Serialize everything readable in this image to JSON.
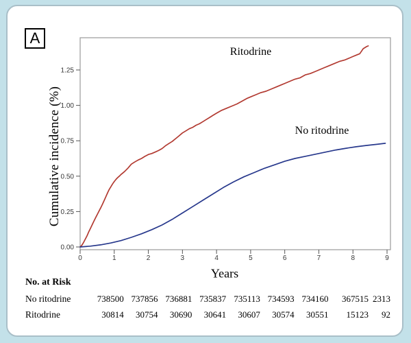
{
  "panel_label": "A",
  "colors": {
    "ritodrine_line": "#b23a31",
    "no_ritodrine_line": "#27388c",
    "frame_background": "#c3e1e9",
    "card_background": "#ffffff",
    "card_border": "#a9bfc8",
    "plot_border": "#9a9a9a",
    "tick_text": "#383838"
  },
  "chart_data": {
    "type": "line",
    "title": "",
    "xlabel": "Years",
    "ylabel": "Cumulative incidence (%)",
    "xlim": [
      0,
      9.1
    ],
    "ylim": [
      0,
      1.48
    ],
    "grid": false,
    "legend_position": "inline-labels",
    "x_ticks": [
      0,
      1,
      2,
      3,
      4,
      5,
      6,
      7,
      8,
      9
    ],
    "x_tick_labels": [
      "0",
      "1",
      "2",
      "3",
      "4",
      "5",
      "6",
      "7",
      "8",
      "9"
    ],
    "y_tick_values": [
      0.0,
      0.25,
      0.5,
      0.75,
      1.0,
      1.25
    ],
    "y_tick_labels": [
      "0.00",
      "0.25",
      "0.50",
      "0.75",
      "1.00",
      "1.25"
    ],
    "series": [
      {
        "name": "Ritodrine",
        "color": "#b23a31",
        "points": [
          [
            0.0,
            0.0
          ],
          [
            0.05,
            0.012
          ],
          [
            0.1,
            0.032
          ],
          [
            0.15,
            0.055
          ],
          [
            0.2,
            0.078
          ],
          [
            0.25,
            0.105
          ],
          [
            0.3,
            0.13
          ],
          [
            0.35,
            0.155
          ],
          [
            0.4,
            0.18
          ],
          [
            0.45,
            0.205
          ],
          [
            0.5,
            0.228
          ],
          [
            0.55,
            0.252
          ],
          [
            0.6,
            0.275
          ],
          [
            0.65,
            0.3
          ],
          [
            0.7,
            0.325
          ],
          [
            0.75,
            0.352
          ],
          [
            0.8,
            0.38
          ],
          [
            0.85,
            0.405
          ],
          [
            0.9,
            0.425
          ],
          [
            0.95,
            0.445
          ],
          [
            1.0,
            0.462
          ],
          [
            1.05,
            0.477
          ],
          [
            1.1,
            0.49
          ],
          [
            1.15,
            0.5
          ],
          [
            1.2,
            0.512
          ],
          [
            1.3,
            0.532
          ],
          [
            1.4,
            0.556
          ],
          [
            1.5,
            0.585
          ],
          [
            1.6,
            0.6
          ],
          [
            1.7,
            0.614
          ],
          [
            1.8,
            0.625
          ],
          [
            1.9,
            0.64
          ],
          [
            2.0,
            0.653
          ],
          [
            2.1,
            0.66
          ],
          [
            2.2,
            0.67
          ],
          [
            2.3,
            0.681
          ],
          [
            2.4,
            0.695
          ],
          [
            2.5,
            0.714
          ],
          [
            2.6,
            0.73
          ],
          [
            2.7,
            0.745
          ],
          [
            2.8,
            0.765
          ],
          [
            2.9,
            0.785
          ],
          [
            3.0,
            0.805
          ],
          [
            3.1,
            0.82
          ],
          [
            3.2,
            0.835
          ],
          [
            3.3,
            0.845
          ],
          [
            3.4,
            0.86
          ],
          [
            3.5,
            0.87
          ],
          [
            3.6,
            0.885
          ],
          [
            3.7,
            0.9
          ],
          [
            3.8,
            0.915
          ],
          [
            3.9,
            0.93
          ],
          [
            4.0,
            0.945
          ],
          [
            4.15,
            0.965
          ],
          [
            4.3,
            0.98
          ],
          [
            4.45,
            0.995
          ],
          [
            4.6,
            1.01
          ],
          [
            4.75,
            1.03
          ],
          [
            4.9,
            1.05
          ],
          [
            5.0,
            1.06
          ],
          [
            5.15,
            1.075
          ],
          [
            5.3,
            1.09
          ],
          [
            5.45,
            1.1
          ],
          [
            5.6,
            1.115
          ],
          [
            5.75,
            1.13
          ],
          [
            5.9,
            1.145
          ],
          [
            6.0,
            1.155
          ],
          [
            6.15,
            1.17
          ],
          [
            6.3,
            1.185
          ],
          [
            6.45,
            1.195
          ],
          [
            6.6,
            1.215
          ],
          [
            6.75,
            1.225
          ],
          [
            6.9,
            1.24
          ],
          [
            7.0,
            1.25
          ],
          [
            7.15,
            1.265
          ],
          [
            7.3,
            1.28
          ],
          [
            7.45,
            1.295
          ],
          [
            7.6,
            1.31
          ],
          [
            7.75,
            1.32
          ],
          [
            7.9,
            1.335
          ],
          [
            8.0,
            1.345
          ],
          [
            8.1,
            1.355
          ],
          [
            8.2,
            1.365
          ],
          [
            8.3,
            1.4
          ],
          [
            8.4,
            1.415
          ],
          [
            8.45,
            1.42
          ]
        ]
      },
      {
        "name": "No ritodrine",
        "color": "#27388c",
        "points": [
          [
            0.0,
            0.0
          ],
          [
            0.3,
            0.006
          ],
          [
            0.6,
            0.015
          ],
          [
            0.9,
            0.028
          ],
          [
            1.2,
            0.045
          ],
          [
            1.5,
            0.068
          ],
          [
            1.8,
            0.093
          ],
          [
            2.1,
            0.122
          ],
          [
            2.4,
            0.155
          ],
          [
            2.7,
            0.195
          ],
          [
            3.0,
            0.24
          ],
          [
            3.3,
            0.285
          ],
          [
            3.6,
            0.33
          ],
          [
            3.9,
            0.375
          ],
          [
            4.2,
            0.42
          ],
          [
            4.5,
            0.46
          ],
          [
            4.8,
            0.495
          ],
          [
            5.1,
            0.525
          ],
          [
            5.4,
            0.555
          ],
          [
            5.7,
            0.58
          ],
          [
            6.0,
            0.605
          ],
          [
            6.3,
            0.625
          ],
          [
            6.6,
            0.64
          ],
          [
            6.9,
            0.655
          ],
          [
            7.2,
            0.67
          ],
          [
            7.5,
            0.685
          ],
          [
            7.8,
            0.697
          ],
          [
            8.1,
            0.708
          ],
          [
            8.4,
            0.717
          ],
          [
            8.7,
            0.725
          ],
          [
            8.95,
            0.732
          ]
        ]
      }
    ]
  },
  "risk_table": {
    "title": "No. at Risk",
    "column_years": [
      1,
      2,
      3,
      4,
      5,
      6,
      7,
      8,
      9
    ],
    "rows": [
      {
        "label": "No ritodrine",
        "values": [
          "738500",
          "737856",
          "736881",
          "735837",
          "735113",
          "734593",
          "734160",
          "367515",
          "2313"
        ]
      },
      {
        "label": "Ritodrine",
        "values": [
          "30814",
          "30754",
          "30690",
          "30641",
          "30607",
          "30574",
          "30551",
          "15123",
          "92"
        ]
      }
    ]
  }
}
